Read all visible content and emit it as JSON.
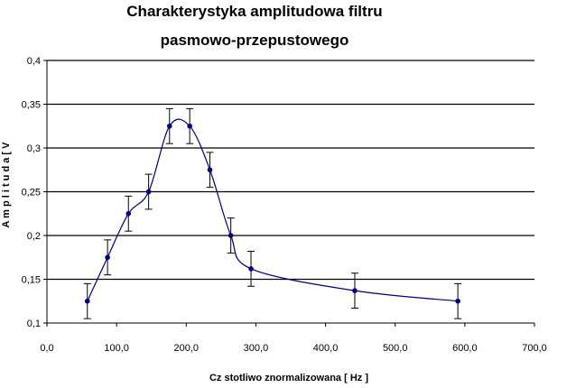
{
  "chart_data": {
    "type": "line",
    "title_lines": [
      "Charakterystyka amplitudowa filtru",
      "pasmowo-przepustowego"
    ],
    "xlabel": "Cz  stotliwo    znormalizowana [ Hz ]",
    "ylabel": "A m p l i t u d a  [ V",
    "xlim": [
      0,
      700
    ],
    "ylim": [
      0.1,
      0.4
    ],
    "x_ticks": [
      0,
      100,
      200,
      300,
      400,
      500,
      600,
      700
    ],
    "x_tick_labels": [
      "0,0",
      "100,0",
      "200,0",
      "300,0",
      "400,0",
      "500,0",
      "600,0",
      "700,0"
    ],
    "y_ticks": [
      0.1,
      0.15,
      0.2,
      0.25,
      0.3,
      0.35,
      0.4
    ],
    "y_tick_labels": [
      "0,1",
      "0,15",
      "0,2",
      "0,25",
      "0,3",
      "0,35",
      "0,4"
    ],
    "grid": "horizontal",
    "legend": "none",
    "series": [
      {
        "x": [
          58,
          87,
          117,
          146,
          176,
          205,
          234,
          264,
          293,
          442,
          590
        ],
        "y": [
          0.125,
          0.175,
          0.225,
          0.25,
          0.325,
          0.325,
          0.275,
          0.2,
          0.162,
          0.137,
          0.125
        ],
        "error": 0.02,
        "smooth": true
      }
    ],
    "colors": {
      "series": "#00007f",
      "grid": "#000000",
      "axis": "#000000"
    }
  }
}
